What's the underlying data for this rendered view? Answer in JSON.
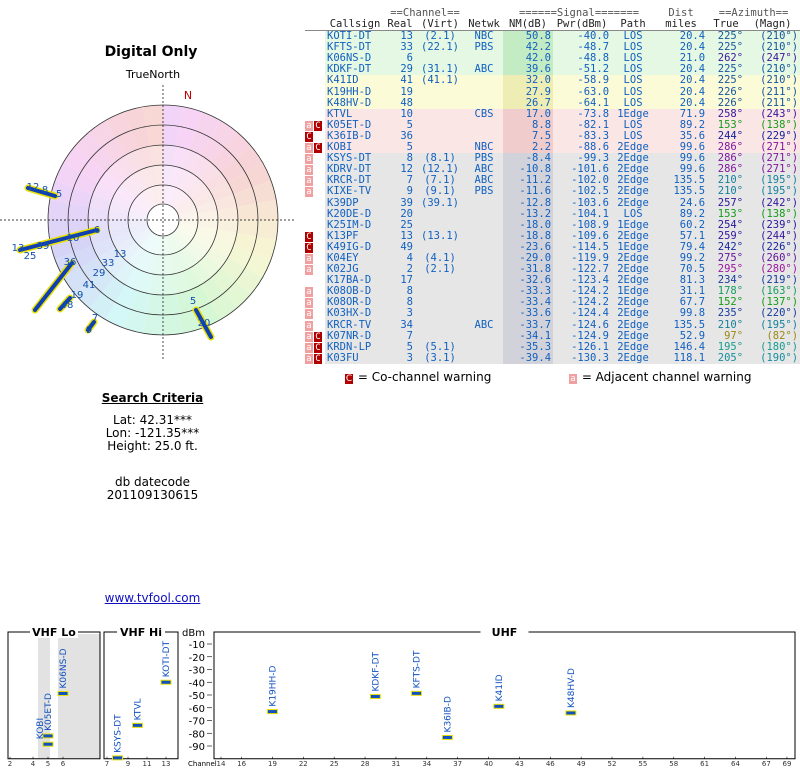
{
  "header": {
    "title": "Digital Only",
    "north_label": "TrueNorth",
    "north_mark": "N"
  },
  "polar": {
    "labels": [
      "12",
      "8",
      "5",
      "6",
      "10",
      "13",
      "39",
      "25",
      "36",
      "33",
      "29",
      "41",
      "19",
      "48",
      "7",
      "9",
      "13",
      "5",
      "20"
    ]
  },
  "search": {
    "title": "Search Criteria",
    "lat": "Lat: 42.31***",
    "lon": "Lon: -121.35***",
    "height": "Height: 25.0 ft.",
    "datecode_label": "db datecode",
    "datecode": "201109130615"
  },
  "link": "www.tvfool.com",
  "table": {
    "groups": [
      "==Channel==",
      "======Signal=======",
      "Dist",
      "==Azimuth=="
    ],
    "columns": [
      "Callsign",
      "Real",
      "(Virt)",
      "Netwk",
      "NM(dB)",
      "Pwr(dBm)",
      "Path",
      "miles",
      "True",
      "(Magn)"
    ],
    "rows": [
      {
        "warn": [],
        "cells": [
          "KOTI-DT",
          "13",
          "(2.1)",
          "NBC",
          "50.8",
          "-40.0",
          "LOS",
          "20.4",
          "225°",
          "(210°)"
        ]
      },
      {
        "warn": [],
        "cells": [
          "KFTS-DT",
          "33",
          "(22.1)",
          "PBS",
          "42.2",
          "-48.7",
          "LOS",
          "20.4",
          "225°",
          "(210°)"
        ]
      },
      {
        "warn": [],
        "cells": [
          "K06NS-D",
          "6",
          "",
          "",
          "42.0",
          "-48.8",
          "LOS",
          "21.0",
          "262°",
          "(247°)"
        ]
      },
      {
        "warn": [],
        "cells": [
          "KDKF-DT",
          "29",
          "(31.1)",
          "ABC",
          "39.6",
          "-51.2",
          "LOS",
          "20.4",
          "225°",
          "(210°)"
        ]
      },
      {
        "warn": [],
        "cells": [
          "K41ID",
          "41",
          "(41.1)",
          "",
          "32.0",
          "-58.9",
          "LOS",
          "20.4",
          "225°",
          "(210°)"
        ]
      },
      {
        "warn": [],
        "cells": [
          "K19HH-D",
          "19",
          "",
          "",
          "27.9",
          "-63.0",
          "LOS",
          "20.4",
          "226°",
          "(211°)"
        ]
      },
      {
        "warn": [],
        "cells": [
          "K48HV-D",
          "48",
          "",
          "",
          "26.7",
          "-64.1",
          "LOS",
          "20.4",
          "226°",
          "(211°)"
        ]
      },
      {
        "warn": [],
        "cells": [
          "KTVL",
          "10",
          "",
          "CBS",
          "17.0",
          "-73.8",
          "1Edge",
          "71.9",
          "258°",
          "(243°)"
        ]
      },
      {
        "warn": [
          "a",
          "C"
        ],
        "cells": [
          "K05ET-D",
          "5",
          "",
          "",
          "8.8",
          "-82.1",
          "LOS",
          "89.2",
          "153°",
          "(138°)"
        ]
      },
      {
        "warn": [
          "C"
        ],
        "cells": [
          "K36IB-D",
          "36",
          "",
          "",
          "7.5",
          "-83.3",
          "LOS",
          "35.6",
          "244°",
          "(229°)"
        ]
      },
      {
        "warn": [
          "a",
          "C"
        ],
        "cells": [
          "KOBI",
          "5",
          "",
          "NBC",
          "2.2",
          "-88.6",
          "2Edge",
          "99.6",
          "286°",
          "(271°)"
        ]
      },
      {
        "warn": [
          "a"
        ],
        "cells": [
          "KSYS-DT",
          "8",
          "(8.1)",
          "PBS",
          "-8.4",
          "-99.3",
          "2Edge",
          "99.6",
          "286°",
          "(271°)"
        ]
      },
      {
        "warn": [
          "a"
        ],
        "cells": [
          "KDRV-DT",
          "12",
          "(12.1)",
          "ABC",
          "-10.8",
          "-101.6",
          "2Edge",
          "99.6",
          "286°",
          "(271°)"
        ]
      },
      {
        "warn": [
          "a"
        ],
        "cells": [
          "KRCR-DT",
          "7",
          "(7.1)",
          "ABC",
          "-11.2",
          "-102.0",
          "2Edge",
          "135.5",
          "210°",
          "(195°)"
        ]
      },
      {
        "warn": [
          "a"
        ],
        "cells": [
          "KIXE-TV",
          "9",
          "(9.1)",
          "PBS",
          "-11.6",
          "-102.5",
          "2Edge",
          "135.5",
          "210°",
          "(195°)"
        ]
      },
      {
        "warn": [],
        "cells": [
          "K39DP",
          "39",
          "(39.1)",
          "",
          "-12.8",
          "-103.6",
          "2Edge",
          "24.6",
          "257°",
          "(242°)"
        ]
      },
      {
        "warn": [],
        "cells": [
          "K20DE-D",
          "20",
          "",
          "",
          "-13.2",
          "-104.1",
          "LOS",
          "89.2",
          "153°",
          "(138°)"
        ]
      },
      {
        "warn": [],
        "cells": [
          "K25IM-D",
          "25",
          "",
          "",
          "-18.0",
          "-108.9",
          "1Edge",
          "60.2",
          "254°",
          "(239°)"
        ]
      },
      {
        "warn": [
          "C"
        ],
        "cells": [
          "K13PF",
          "13",
          "(13.1)",
          "",
          "-18.8",
          "-109.6",
          "2Edge",
          "57.1",
          "259°",
          "(244°)"
        ]
      },
      {
        "warn": [
          "C"
        ],
        "cells": [
          "K49IG-D",
          "49",
          "",
          "",
          "-23.6",
          "-114.5",
          "1Edge",
          "79.4",
          "242°",
          "(226°)"
        ]
      },
      {
        "warn": [
          "a"
        ],
        "cells": [
          "K04EY",
          "4",
          "(4.1)",
          "",
          "-29.0",
          "-119.9",
          "2Edge",
          "99.2",
          "275°",
          "(260°)"
        ]
      },
      {
        "warn": [
          "a"
        ],
        "cells": [
          "K02JG",
          "2",
          "(2.1)",
          "",
          "-31.8",
          "-122.7",
          "2Edge",
          "70.5",
          "295°",
          "(280°)"
        ]
      },
      {
        "warn": [],
        "cells": [
          "K17BA-D",
          "17",
          "",
          "",
          "-32.6",
          "-123.4",
          "2Edge",
          "81.3",
          "234°",
          "(219°)"
        ]
      },
      {
        "warn": [
          "a"
        ],
        "cells": [
          "K08OB-D",
          "8",
          "",
          "",
          "-33.3",
          "-124.2",
          "1Edge",
          "31.1",
          "178°",
          "(163°)"
        ]
      },
      {
        "warn": [
          "a"
        ],
        "cells": [
          "K08OR-D",
          "8",
          "",
          "",
          "-33.4",
          "-124.2",
          "2Edge",
          "67.7",
          "152°",
          "(137°)"
        ]
      },
      {
        "warn": [
          "a"
        ],
        "cells": [
          "K03HX-D",
          "3",
          "",
          "",
          "-33.6",
          "-124.4",
          "2Edge",
          "99.8",
          "235°",
          "(220°)"
        ]
      },
      {
        "warn": [
          "a"
        ],
        "cells": [
          "KRCR-TV",
          "34",
          "",
          "ABC",
          "-33.7",
          "-124.6",
          "2Edge",
          "135.5",
          "210°",
          "(195°)"
        ]
      },
      {
        "warn": [
          "a",
          "C"
        ],
        "cells": [
          "K07NR-D",
          "7",
          "",
          "",
          "-34.1",
          "-124.9",
          "2Edge",
          "52.9",
          "97°",
          "(82°)"
        ]
      },
      {
        "warn": [
          "a",
          "C"
        ],
        "cells": [
          "KRDN-LP",
          "5",
          "(5.1)",
          "",
          "-35.3",
          "-126.1",
          "2Edge",
          "146.4",
          "195°",
          "(180°)"
        ]
      },
      {
        "warn": [
          "a",
          "C"
        ],
        "cells": [
          "K03FU",
          "3",
          "(3.1)",
          "",
          "-39.4",
          "-130.3",
          "2Edge",
          "118.1",
          "205°",
          "(190°)"
        ]
      }
    ]
  },
  "legend": {
    "co_mark": "C",
    "co": "= Co-channel warning",
    "adj_mark": "a",
    "adj": "= Adjacent channel warning"
  },
  "chart_data": {
    "type": "scatter",
    "sections": [
      "VHF Lo",
      "VHF Hi",
      "UHF"
    ],
    "ylabel": "dBm",
    "xlabel": "Channel",
    "ylim": [
      -100,
      0
    ],
    "yticks": [
      -10,
      -20,
      -30,
      -40,
      -50,
      -60,
      -70,
      -80,
      -90
    ],
    "xticks": [
      2,
      4,
      5,
      6,
      7,
      9,
      11,
      13,
      14,
      16,
      19,
      22,
      25,
      28,
      31,
      34,
      37,
      40,
      43,
      46,
      49,
      52,
      55,
      58,
      61,
      64,
      67,
      69
    ],
    "labels": [
      "K06NS-D",
      "KOTI-DT",
      "KTVL",
      "K05ET-D",
      "KOBI",
      "KSYS-DT",
      "K19HH-D",
      "KDKF-DT",
      "KFTS-DT",
      "K36IB-D",
      "K41ID",
      "K48HV-D"
    ],
    "x": [
      6,
      13,
      10,
      5,
      5,
      8,
      19,
      29,
      33,
      36,
      41,
      48
    ],
    "values": [
      -48.8,
      -40.0,
      -73.8,
      -82.1,
      -88.6,
      -99.3,
      -63.0,
      -51.2,
      -48.7,
      -83.3,
      -58.9,
      -64.1
    ],
    "color": "#1050c0"
  }
}
